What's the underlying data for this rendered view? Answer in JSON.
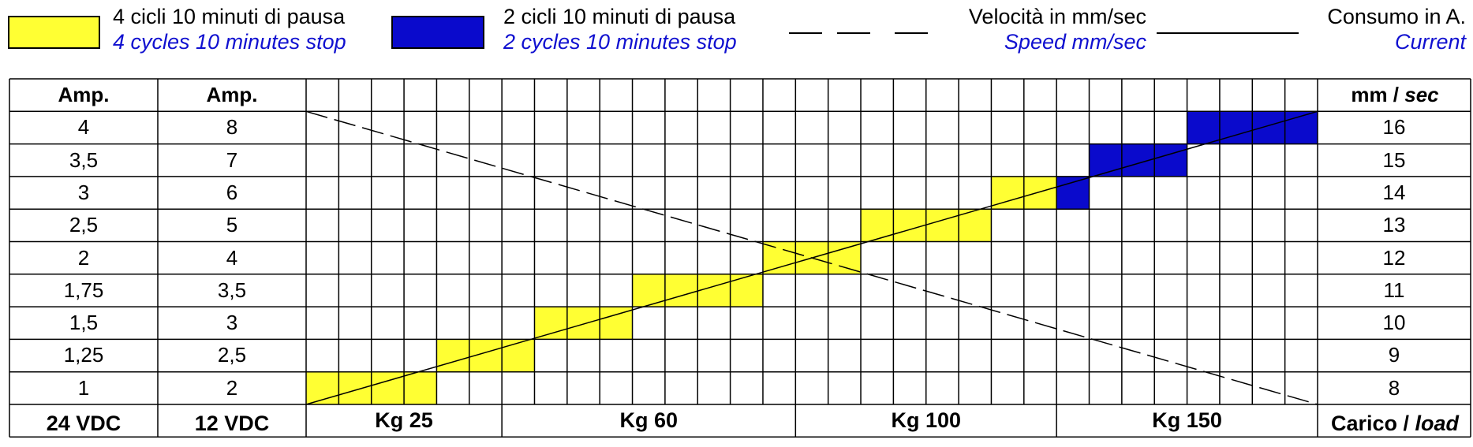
{
  "legend": {
    "yellow": {
      "it": "4 cicli 10 minuti di pausa",
      "en": "4 cycles 10 minutes stop",
      "color": "#ffff33"
    },
    "blue": {
      "it": "2 cicli 10 minuti di pausa",
      "en": "2 cycles 10 minutes stop",
      "color": "#0a0acc"
    },
    "speed": {
      "it": "Velocità in mm/sec",
      "en": "Speed mm/sec"
    },
    "current": {
      "it": "Consumo in A.",
      "en": "Current"
    }
  },
  "table": {
    "header": {
      "amp24": "Amp.",
      "amp12": "Amp.",
      "speed_unit_a": "mm / ",
      "speed_unit_b": "sec"
    },
    "rows": [
      {
        "amp24": "4",
        "amp12": "8",
        "speed": "16"
      },
      {
        "amp24": "3,5",
        "amp12": "7",
        "speed": "15"
      },
      {
        "amp24": "3",
        "amp12": "6",
        "speed": "14"
      },
      {
        "amp24": "2,5",
        "amp12": "5",
        "speed": "13"
      },
      {
        "amp24": "2",
        "amp12": "4",
        "speed": "12"
      },
      {
        "amp24": "1,75",
        "amp12": "3,5",
        "speed": "11"
      },
      {
        "amp24": "1,5",
        "amp12": "3",
        "speed": "10"
      },
      {
        "amp24": "1,25",
        "amp12": "2,5",
        "speed": "9"
      },
      {
        "amp24": "1",
        "amp12": "2",
        "speed": "8"
      }
    ],
    "footer": {
      "v24": "24 VDC",
      "v12": "12 VDC",
      "carico": "Carico / ",
      "load": "load"
    }
  },
  "chart_data": {
    "type": "table",
    "grid_columns": 31,
    "x_load_labels": [
      {
        "label": "Kg 25",
        "start_col": 0,
        "end_col": 6
      },
      {
        "label": "Kg 60",
        "start_col": 6,
        "end_col": 15
      },
      {
        "label": "Kg 100",
        "start_col": 15,
        "end_col": 23
      },
      {
        "label": "Kg 150",
        "start_col": 23,
        "end_col": 31
      }
    ],
    "duty_cycle_bands": [
      {
        "speed": 8,
        "cycles": "4",
        "start_col": 0,
        "end_col": 4
      },
      {
        "speed": 9,
        "cycles": "4",
        "start_col": 4,
        "end_col": 7
      },
      {
        "speed": 10,
        "cycles": "4",
        "start_col": 7,
        "end_col": 10
      },
      {
        "speed": 11,
        "cycles": "4",
        "start_col": 10,
        "end_col": 14
      },
      {
        "speed": 12,
        "cycles": "4",
        "start_col": 14,
        "end_col": 17
      },
      {
        "speed": 13,
        "cycles": "4",
        "start_col": 17,
        "end_col": 21
      },
      {
        "speed": 14,
        "cycles": "4",
        "start_col": 21,
        "end_col": 23
      },
      {
        "speed": 14,
        "cycles": "2",
        "start_col": 23,
        "end_col": 24
      },
      {
        "speed": 15,
        "cycles": "2",
        "start_col": 24,
        "end_col": 27
      },
      {
        "speed": 16,
        "cycles": "2",
        "start_col": 27,
        "end_col": 31
      }
    ],
    "series": [
      {
        "name": "Consumo in A.",
        "style": "solid",
        "from": {
          "col": 0,
          "row_value": 8
        },
        "to": {
          "col": 31,
          "row_value": 16
        }
      },
      {
        "name": "Velocità in mm/sec",
        "style": "dashed",
        "from": {
          "col": 0,
          "row_value": 16
        },
        "to": {
          "col": 31,
          "row_value": 8
        }
      }
    ]
  }
}
